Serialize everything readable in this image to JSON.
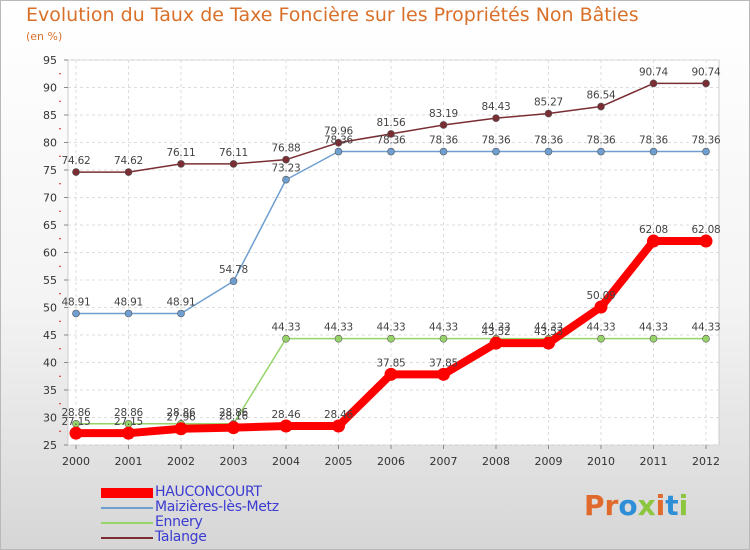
{
  "title": "Evolution du Taux de Taxe Foncière sur les Propriétés Non Bâties",
  "subtitle": "(en %)",
  "brand": {
    "letters": [
      "P",
      "r",
      "o",
      "x",
      "i",
      "t",
      "i"
    ],
    "colors": [
      "#e06a2c",
      "#e06a2c",
      "#2e8fd6",
      "#8cc63f",
      "#e06a2c",
      "#2e8fd6",
      "#8cc63f"
    ]
  },
  "chart_data": {
    "type": "line",
    "title": "Evolution du Taux de Taxe Foncière sur les Propriétés Non Bâties",
    "ylabel": "(en %)",
    "xlabel": "",
    "x": [
      "2000",
      "2001",
      "2002",
      "2003",
      "2004",
      "2005",
      "2006",
      "2007",
      "2008",
      "2009",
      "2010",
      "2011",
      "2012"
    ],
    "ylim": [
      25,
      95
    ],
    "yticks": [
      25,
      30,
      35,
      40,
      45,
      50,
      55,
      60,
      65,
      70,
      75,
      80,
      85,
      90,
      95
    ],
    "grid": true,
    "legend_position": "bottom-left",
    "series": [
      {
        "name": "HAUCONCOURT",
        "color": "#ff0000",
        "values": [
          27.15,
          27.15,
          27.96,
          28.16,
          28.46,
          28.46,
          37.85,
          37.85,
          43.52,
          43.53,
          50.09,
          62.08,
          62.08
        ],
        "labels": [
          "27.15",
          "27.15",
          "27.96",
          "28.16",
          "28.46",
          "28.46",
          "37.85",
          "37.85",
          "43.52",
          "43.53",
          "50.09",
          "62.08",
          "62.08"
        ]
      },
      {
        "name": "Maizières-lès-Metz",
        "color": "#6f9fd0",
        "values": [
          48.91,
          48.91,
          48.91,
          54.78,
          73.23,
          78.36,
          78.36,
          78.36,
          78.36,
          78.36,
          78.36,
          78.36,
          78.36
        ],
        "labels": [
          "48.91",
          "48.91",
          "48.91",
          "54.78",
          "73.23",
          "78.36",
          "78.36",
          "78.36",
          "78.36",
          "78.36",
          "78.36",
          "78.36",
          "78.36"
        ]
      },
      {
        "name": "Ennery",
        "color": "#96d46a",
        "values": [
          28.86,
          28.86,
          28.86,
          28.86,
          44.33,
          44.33,
          44.33,
          44.33,
          44.33,
          44.33,
          44.33,
          44.33,
          44.33
        ],
        "labels": [
          "28.86",
          "28.86",
          "28.86",
          "28.86",
          "44.33",
          "44.33",
          "44.33",
          "44.33",
          "44.33",
          "44.33",
          "44.33",
          "44.33",
          "44.33"
        ]
      },
      {
        "name": "Talange",
        "color": "#7a2e33",
        "values": [
          74.62,
          74.62,
          76.11,
          76.11,
          76.88,
          79.96,
          81.56,
          83.19,
          84.43,
          85.27,
          86.54,
          90.74,
          90.74
        ],
        "labels": [
          "74.62",
          "74.62",
          "76.11",
          "76.11",
          "76.88",
          "79.96",
          "81.56",
          "83.19",
          "84.43",
          "85.27",
          "86.54",
          "90.74",
          "90.74"
        ]
      }
    ]
  }
}
